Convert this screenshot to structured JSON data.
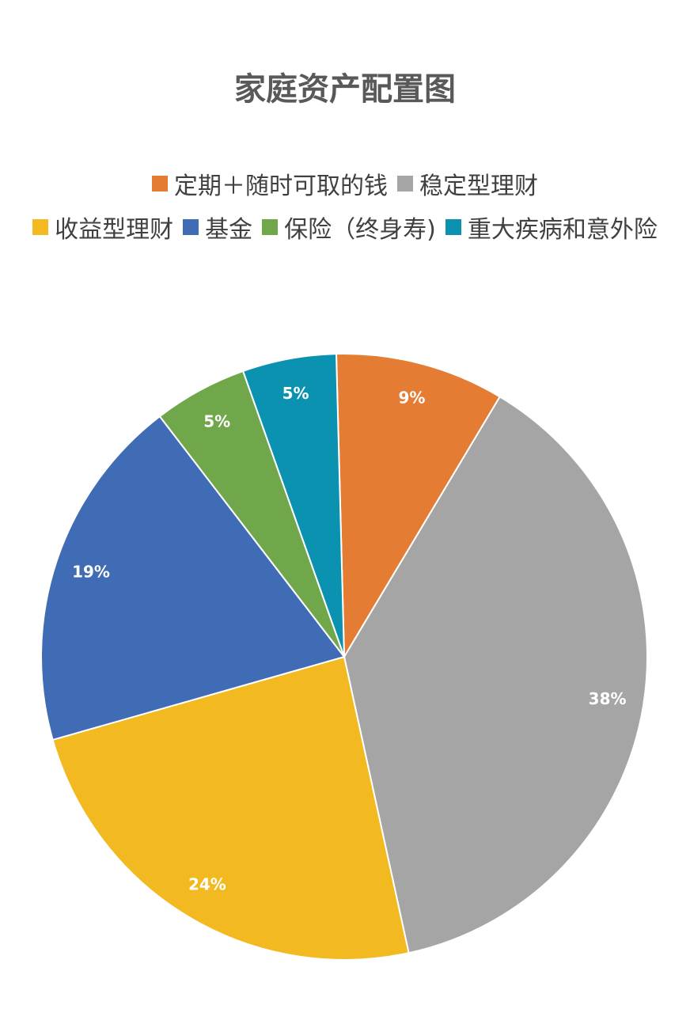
{
  "chart_data": {
    "type": "pie",
    "title": "家庭资产配置图",
    "legend_position": "top",
    "slices": [
      {
        "name": "定期＋随时可取的钱",
        "value": 9,
        "label": "9%",
        "color": "#E47C33"
      },
      {
        "name": "稳定型理财",
        "value": 38,
        "label": "38%",
        "color": "#A5A5A5"
      },
      {
        "name": "收益型理财",
        "value": 24,
        "label": "24%",
        "color": "#F2B920"
      },
      {
        "name": "基金",
        "value": 19,
        "label": "19%",
        "color": "#3F6CB4"
      },
      {
        "name": "保险（终身寿)",
        "value": 5,
        "label": "5%",
        "color": "#6FA74A"
      },
      {
        "name": "重大疾病和意外险",
        "value": 5,
        "label": "5%",
        "color": "#0A92B0"
      }
    ]
  }
}
